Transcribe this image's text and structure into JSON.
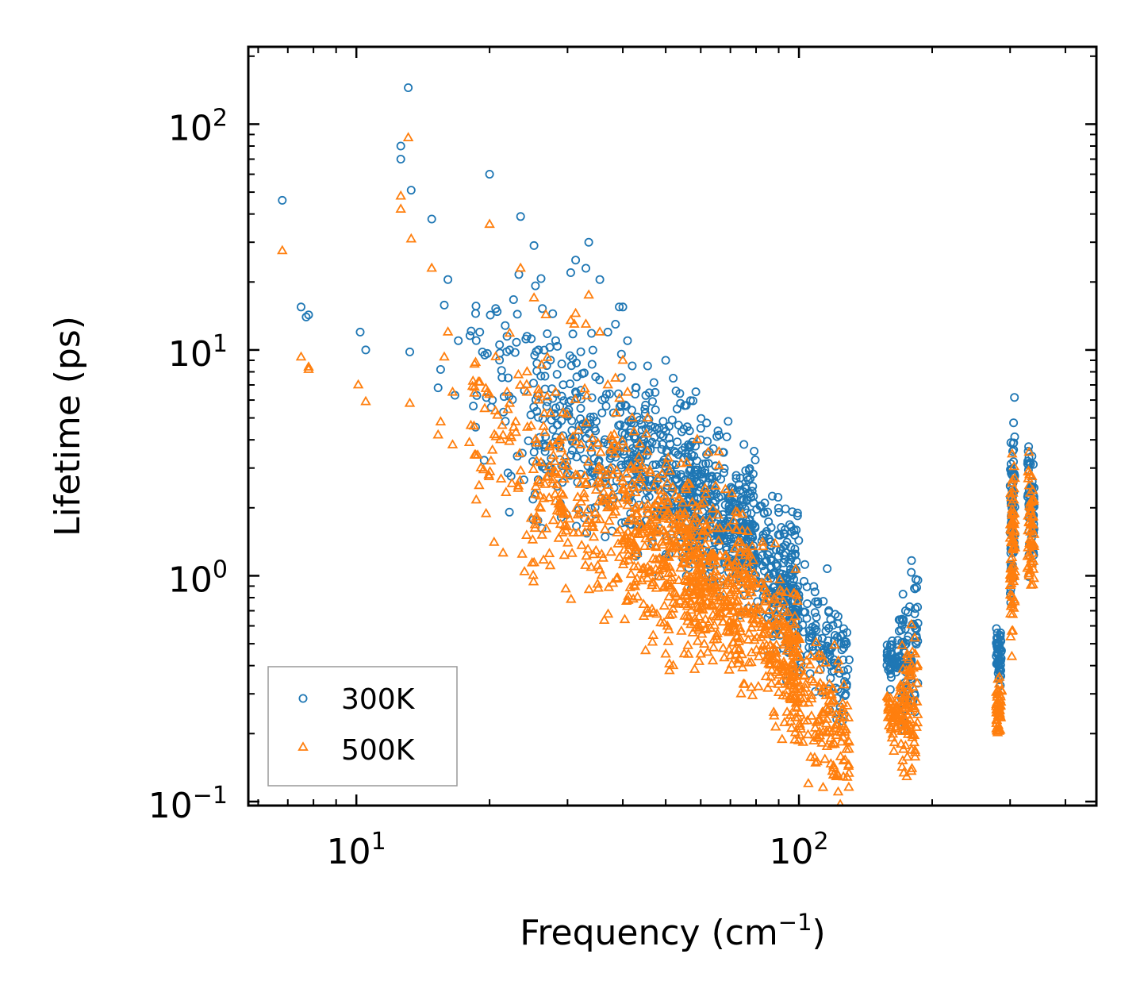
{
  "chart_data": {
    "type": "scatter",
    "title": "",
    "xlabel": "Frequency (cm",
    "xlabel_sup": "−1",
    "xlabel_tail": ")",
    "ylabel": "Lifetime (ps)",
    "xscale": "log",
    "yscale": "log",
    "xlim": [
      5.7,
      470
    ],
    "ylim": [
      0.096,
      220
    ],
    "x_ticks": [
      {
        "value": 10,
        "base": "10",
        "exp": "1"
      },
      {
        "value": 100,
        "base": "10",
        "exp": "2"
      }
    ],
    "y_ticks": [
      {
        "value": 0.1,
        "base": "10",
        "exp": "−1"
      },
      {
        "value": 1,
        "base": "10",
        "exp": "0"
      },
      {
        "value": 10,
        "base": "10",
        "exp": "1"
      },
      {
        "value": 100,
        "base": "10",
        "exp": "2"
      }
    ],
    "legend_position": "bottom-left",
    "series": [
      {
        "name": "300K",
        "marker": "circle",
        "color": "#1f77b4",
        "points": [
          [
            6.8,
            46
          ],
          [
            7.5,
            15.5
          ],
          [
            7.7,
            14
          ],
          [
            7.8,
            14.3
          ],
          [
            10.2,
            12
          ],
          [
            10.5,
            10
          ],
          [
            12.6,
            80
          ],
          [
            12.6,
            70
          ],
          [
            13.1,
            145
          ],
          [
            13.3,
            51
          ],
          [
            13.2,
            9.8
          ],
          [
            14.8,
            38
          ],
          [
            15.3,
            6.8
          ],
          [
            15.5,
            8.2
          ],
          [
            15.8,
            15.8
          ],
          [
            16.1,
            20.5
          ],
          [
            17,
            11
          ],
          [
            16.7,
            6.3
          ],
          [
            18.6,
            14.5
          ],
          [
            19,
            12
          ],
          [
            19.5,
            9.5
          ],
          [
            20,
            60
          ],
          [
            20.3,
            6
          ],
          [
            21.9,
            11.5
          ],
          [
            22.2,
            10
          ],
          [
            23.5,
            39
          ],
          [
            24.3,
            11.5
          ],
          [
            25.2,
            29
          ],
          [
            25.8,
            10
          ],
          [
            27,
            11.8
          ],
          [
            28.2,
            11
          ],
          [
            30.5,
            22
          ],
          [
            31.3,
            25
          ],
          [
            33,
            23
          ],
          [
            33.5,
            30
          ],
          [
            35.5,
            20.5
          ],
          [
            37,
            12
          ],
          [
            38.5,
            13
          ],
          [
            40,
            15.5
          ],
          [
            41,
            11
          ],
          [
            42,
            8.5
          ],
          [
            45.5,
            8.5
          ],
          [
            50,
            9
          ],
          [
            52,
            7.5
          ],
          [
            54,
            5.8
          ],
          [
            60,
            4.5
          ],
          [
            66,
            4.2
          ],
          [
            74,
            2.2
          ],
          [
            79,
            2.1
          ]
        ],
        "clusters": [
          {
            "x": [
              18,
              40
            ],
            "y_center": [
              7.5,
              4.5
            ],
            "spread": 0.55,
            "count": 130
          },
          {
            "x": [
              25,
              60
            ],
            "y_center": [
              4.5,
              2.6
            ],
            "spread": 0.45,
            "count": 260
          },
          {
            "x": [
              40,
              80
            ],
            "y_center": [
              3.2,
              1.7
            ],
            "spread": 0.4,
            "count": 320
          },
          {
            "x": [
              55,
              100
            ],
            "y_center": [
              2.0,
              1.1
            ],
            "spread": 0.35,
            "count": 300
          },
          {
            "x": [
              85,
              130
            ],
            "y_center": [
              0.9,
              0.38
            ],
            "spread": 0.3,
            "count": 220
          },
          {
            "x": [
              158,
              168
            ],
            "y_center": [
              0.42,
              0.42
            ],
            "spread": 0.12,
            "count": 45
          },
          {
            "x": [
              168,
              186
            ],
            "y_center": [
              0.45,
              0.55
            ],
            "spread": 0.35,
            "count": 90
          },
          {
            "x": [
              279,
              287
            ],
            "y_center": [
              0.45,
              0.45
            ],
            "spread": 0.14,
            "count": 55
          },
          {
            "x": [
              300,
              308
            ],
            "y_center": [
              1.6,
              2.2
            ],
            "spread": 0.45,
            "count": 80
          },
          {
            "x": [
              328,
              340
            ],
            "y_center": [
              2.2,
              1.8
            ],
            "spread": 0.3,
            "count": 60
          }
        ]
      },
      {
        "name": "500K",
        "marker": "triangle",
        "color": "#ff7f0e",
        "points": [
          [
            6.8,
            27.5
          ],
          [
            7.5,
            9.3
          ],
          [
            7.8,
            8.4
          ],
          [
            7.8,
            8.2
          ],
          [
            10.1,
            7
          ],
          [
            10.5,
            5.9
          ],
          [
            12.6,
            48
          ],
          [
            12.6,
            42
          ],
          [
            13.1,
            87
          ],
          [
            13.3,
            31
          ],
          [
            13.2,
            5.8
          ],
          [
            14.8,
            23
          ],
          [
            15.3,
            4.2
          ],
          [
            15.5,
            4.8
          ],
          [
            15.8,
            9.3
          ],
          [
            16.1,
            12
          ],
          [
            16.5,
            6.5
          ],
          [
            16.5,
            3.8
          ],
          [
            18.6,
            8.8
          ],
          [
            19,
            7.2
          ],
          [
            19.5,
            5.5
          ],
          [
            20,
            36
          ],
          [
            20.3,
            3.6
          ],
          [
            21.9,
            6.5
          ],
          [
            22.2,
            5.8
          ],
          [
            23.5,
            23
          ],
          [
            24.3,
            6.5
          ],
          [
            25.2,
            17
          ],
          [
            25.8,
            6
          ],
          [
            27,
            6.2
          ],
          [
            28.2,
            6.5
          ],
          [
            30.5,
            13.5
          ],
          [
            31.3,
            14.5
          ],
          [
            33,
            13
          ],
          [
            33.5,
            17.5
          ],
          [
            35.5,
            12
          ],
          [
            37,
            7
          ],
          [
            38.5,
            7.5
          ],
          [
            40,
            9
          ],
          [
            41,
            6.5
          ],
          [
            42,
            5
          ],
          [
            45.5,
            5
          ],
          [
            50,
            0.45
          ],
          [
            51,
            0.38
          ],
          [
            52,
            0.4
          ],
          [
            60,
            0.45
          ],
          [
            74,
            0.3
          ],
          [
            78,
            0.32
          ],
          [
            105,
            0.12
          ],
          [
            110,
            0.15
          ],
          [
            128,
            0.17
          ],
          [
            180,
            0.14
          ]
        ],
        "clusters": [
          {
            "x": [
              18,
              40
            ],
            "y_center": [
              4.2,
              2.4
            ],
            "spread": 0.55,
            "count": 130
          },
          {
            "x": [
              25,
              60
            ],
            "y_center": [
              2.4,
              1.3
            ],
            "spread": 0.5,
            "count": 260
          },
          {
            "x": [
              40,
              80
            ],
            "y_center": [
              1.6,
              0.85
            ],
            "spread": 0.45,
            "count": 320
          },
          {
            "x": [
              55,
              100
            ],
            "y_center": [
              1.0,
              0.5
            ],
            "spread": 0.4,
            "count": 300
          },
          {
            "x": [
              85,
              130
            ],
            "y_center": [
              0.45,
              0.18
            ],
            "spread": 0.32,
            "count": 220
          },
          {
            "x": [
              158,
              168
            ],
            "y_center": [
              0.24,
              0.24
            ],
            "spread": 0.14,
            "count": 45
          },
          {
            "x": [
              168,
              186
            ],
            "y_center": [
              0.25,
              0.3
            ],
            "spread": 0.35,
            "count": 90
          },
          {
            "x": [
              279,
              287
            ],
            "y_center": [
              0.26,
              0.26
            ],
            "spread": 0.15,
            "count": 55
          },
          {
            "x": [
              300,
              308
            ],
            "y_center": [
              1.1,
              1.4
            ],
            "spread": 0.45,
            "count": 80
          },
          {
            "x": [
              328,
              340
            ],
            "y_center": [
              1.8,
              1.5
            ],
            "spread": 0.3,
            "count": 60
          }
        ]
      }
    ]
  }
}
